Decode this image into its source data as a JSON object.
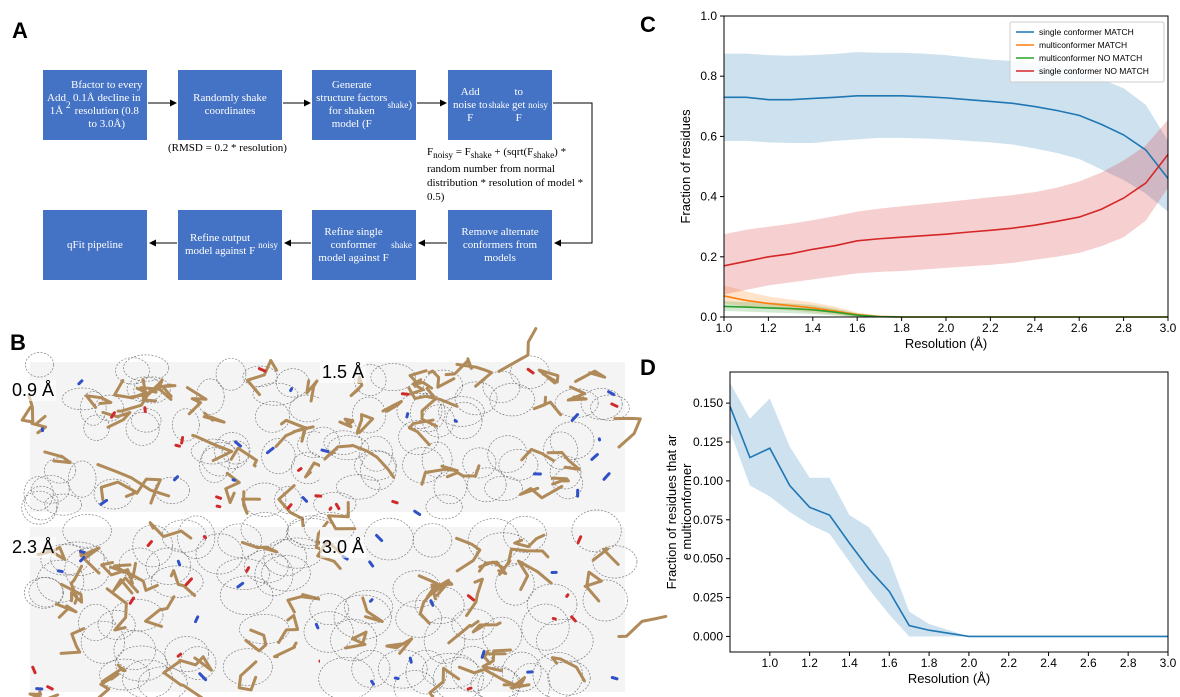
{
  "panels": {
    "a": "A",
    "b": "B",
    "c": "C",
    "d": "D"
  },
  "flowchart": {
    "boxes": [
      {
        "html": "Add 1Å<sup>2</sup> Bfactor to every 0.1Å decline in resolution (0.8 to 3.0Å)"
      },
      {
        "html": "Randomly shake coordinates"
      },
      {
        "html": "Generate structure factors for shaken model (F<sub>shake</sub>)"
      },
      {
        "html": "Add noise to F<sub>shake</sub> to get F<sub>noisy</sub>"
      },
      {
        "html": "qFit pipeline"
      },
      {
        "html": "Refine output model against F<sub>noisy</sub>"
      },
      {
        "html": "Refine single conformer model against F<sub>shake</sub>"
      },
      {
        "html": "Remove alternate conformers from models"
      }
    ],
    "rmsd_note": "(RMSD = 0.2 * resolution)",
    "noise_formula_html": "F<sub>noisy</sub> = F<sub>shake</sub> + (sqrt(F<sub>shake</sub>) * random number from normal distribution * resolution of model * 0.5)"
  },
  "maps": [
    {
      "label": "0.9 Å",
      "density": 0.9
    },
    {
      "label": "1.5 Å",
      "density": 1.5
    },
    {
      "label": "2.3 Å",
      "density": 2.3
    },
    {
      "label": "3.0 Å",
      "density": 3.0
    }
  ],
  "chart_data": [
    {
      "type": "line",
      "panel": "C",
      "xlabel": "Resolution (Å)",
      "ylabel": "Fraction of residues",
      "xlim": [
        1.0,
        3.0
      ],
      "ylim": [
        0.0,
        1.0
      ],
      "xticks": [
        "1.0",
        "1.2",
        "1.4",
        "1.6",
        "1.8",
        "2.0",
        "2.2",
        "2.4",
        "2.6",
        "2.8",
        "3.0"
      ],
      "yticks": [
        "0.0",
        "0.2",
        "0.4",
        "0.6",
        "0.8",
        "1.0"
      ],
      "legend_position": "top-right",
      "x": [
        1.0,
        1.1,
        1.2,
        1.3,
        1.4,
        1.5,
        1.6,
        1.7,
        1.8,
        1.9,
        2.0,
        2.1,
        2.2,
        2.3,
        2.4,
        2.5,
        2.6,
        2.7,
        2.8,
        2.9,
        3.0
      ],
      "series": [
        {
          "name": "single conformer MATCH",
          "color": "#1f77b4",
          "values": [
            0.73,
            0.73,
            0.722,
            0.722,
            0.726,
            0.73,
            0.735,
            0.735,
            0.735,
            0.732,
            0.728,
            0.722,
            0.716,
            0.71,
            0.699,
            0.686,
            0.67,
            0.64,
            0.605,
            0.555,
            0.46
          ],
          "lower": [
            0.585,
            0.585,
            0.58,
            0.578,
            0.578,
            0.585,
            0.59,
            0.595,
            0.595,
            0.593,
            0.59,
            0.585,
            0.58,
            0.573,
            0.56,
            0.545,
            0.525,
            0.49,
            0.455,
            0.41,
            0.35
          ],
          "upper": [
            0.875,
            0.875,
            0.87,
            0.868,
            0.87,
            0.874,
            0.88,
            0.878,
            0.878,
            0.875,
            0.87,
            0.862,
            0.855,
            0.85,
            0.842,
            0.83,
            0.815,
            0.79,
            0.76,
            0.705,
            0.585
          ]
        },
        {
          "name": "multiconformer MATCH",
          "color": "#ff7f0e",
          "values": [
            0.07,
            0.055,
            0.045,
            0.038,
            0.03,
            0.02,
            0.008,
            0.002,
            0.0,
            0.0,
            0.0,
            0.0,
            0.0,
            0.0,
            0.0,
            0.0,
            0.0,
            0.0,
            0.0,
            0.0,
            0.0
          ],
          "lower": [
            0.045,
            0.035,
            0.028,
            0.022,
            0.015,
            0.008,
            0.0,
            0.0,
            0.0,
            0.0,
            0.0,
            0.0,
            0.0,
            0.0,
            0.0,
            0.0,
            0.0,
            0.0,
            0.0,
            0.0,
            0.0
          ],
          "upper": [
            0.105,
            0.085,
            0.068,
            0.058,
            0.048,
            0.035,
            0.015,
            0.004,
            0.0,
            0.0,
            0.0,
            0.0,
            0.0,
            0.0,
            0.0,
            0.0,
            0.0,
            0.0,
            0.0,
            0.0,
            0.0
          ]
        },
        {
          "name": "multiconformer NO MATCH",
          "color": "#2ca02c",
          "values": [
            0.035,
            0.033,
            0.03,
            0.028,
            0.024,
            0.016,
            0.006,
            0.001,
            0.0,
            0.0,
            0.0,
            0.0,
            0.0,
            0.0,
            0.0,
            0.0,
            0.0,
            0.0,
            0.0,
            0.0,
            0.0
          ],
          "lower": [
            0.02,
            0.018,
            0.015,
            0.013,
            0.01,
            0.005,
            0.0,
            0.0,
            0.0,
            0.0,
            0.0,
            0.0,
            0.0,
            0.0,
            0.0,
            0.0,
            0.0,
            0.0,
            0.0,
            0.0,
            0.0
          ],
          "upper": [
            0.052,
            0.05,
            0.048,
            0.045,
            0.04,
            0.028,
            0.012,
            0.003,
            0.0,
            0.0,
            0.0,
            0.0,
            0.0,
            0.0,
            0.0,
            0.0,
            0.0,
            0.0,
            0.0,
            0.0,
            0.0
          ]
        },
        {
          "name": "single conformer NO MATCH",
          "color": "#d62728",
          "values": [
            0.17,
            0.185,
            0.2,
            0.21,
            0.225,
            0.237,
            0.253,
            0.26,
            0.265,
            0.27,
            0.275,
            0.282,
            0.288,
            0.295,
            0.305,
            0.318,
            0.332,
            0.358,
            0.395,
            0.445,
            0.54
          ],
          "lower": [
            0.075,
            0.09,
            0.105,
            0.115,
            0.125,
            0.135,
            0.145,
            0.15,
            0.153,
            0.158,
            0.163,
            0.168,
            0.173,
            0.18,
            0.19,
            0.2,
            0.213,
            0.235,
            0.265,
            0.32,
            0.43
          ],
          "upper": [
            0.275,
            0.29,
            0.3,
            0.31,
            0.322,
            0.335,
            0.35,
            0.36,
            0.368,
            0.375,
            0.382,
            0.39,
            0.398,
            0.405,
            0.415,
            0.43,
            0.45,
            0.48,
            0.52,
            0.57,
            0.655
          ]
        }
      ]
    },
    {
      "type": "line",
      "panel": "D",
      "xlabel": "Resolution (Å)",
      "ylabel": "Fraction of residues that are multiconformer",
      "xlim": [
        0.8,
        3.0
      ],
      "ylim": [
        -0.01,
        0.17
      ],
      "xticks": [
        "1.0",
        "1.2",
        "1.4",
        "1.6",
        "1.8",
        "2.0",
        "2.2",
        "2.4",
        "2.6",
        "2.8",
        "3.0"
      ],
      "yticks": [
        "0.000",
        "0.025",
        "0.050",
        "0.075",
        "0.100",
        "0.125",
        "0.150"
      ],
      "x": [
        0.8,
        0.9,
        1.0,
        1.1,
        1.2,
        1.3,
        1.4,
        1.5,
        1.6,
        1.7,
        1.8,
        1.9,
        2.0,
        2.1,
        2.2,
        2.3,
        2.4,
        2.5,
        2.6,
        2.7,
        2.8,
        2.9,
        3.0
      ],
      "series": [
        {
          "color": "#1f77b4",
          "values": [
            0.148,
            0.115,
            0.121,
            0.097,
            0.083,
            0.078,
            0.06,
            0.043,
            0.029,
            0.007,
            0.004,
            0.002,
            0.0,
            0.0,
            0.0,
            0.0,
            0.0,
            0.0,
            0.0,
            0.0,
            0.0,
            0.0,
            0.0
          ],
          "lower": [
            0.132,
            0.097,
            0.09,
            0.08,
            0.072,
            0.066,
            0.048,
            0.03,
            0.014,
            0.0,
            0.0,
            0.0,
            0.0,
            0.0,
            0.0,
            0.0,
            0.0,
            0.0,
            0.0,
            0.0,
            0.0,
            0.0,
            0.0
          ],
          "upper": [
            0.163,
            0.14,
            0.153,
            0.122,
            0.102,
            0.102,
            0.078,
            0.07,
            0.05,
            0.016,
            0.008,
            0.004,
            0.0,
            0.0,
            0.0,
            0.0,
            0.0,
            0.0,
            0.0,
            0.0,
            0.0,
            0.0,
            0.0
          ]
        }
      ]
    }
  ]
}
